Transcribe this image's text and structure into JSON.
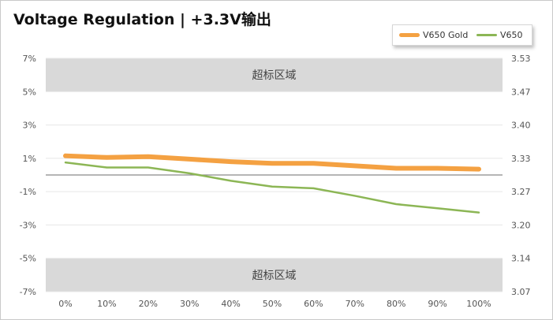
{
  "title": "Voltage Regulation | +3.3V输出",
  "colors": {
    "v650_gold": "#f4a142",
    "v650": "#8cb655",
    "zone": "#d9d9d9",
    "grid": "#e6e6e6",
    "zero_line": "#8a8a8a"
  },
  "chart_data": {
    "type": "line",
    "title": "Voltage Regulation | +3.3V输出",
    "categories": [
      "0%",
      "10%",
      "20%",
      "30%",
      "40%",
      "50%",
      "60%",
      "70%",
      "80%",
      "90%",
      "100%"
    ],
    "y_left_ticks": [
      "7%",
      "5%",
      "3%",
      "1%",
      "-1%",
      "-3%",
      "-5%",
      "-7%"
    ],
    "y_right_ticks": [
      "3.53",
      "3.47",
      "3.40",
      "3.33",
      "3.27",
      "3.20",
      "3.14",
      "3.07"
    ],
    "ylim_left": [
      -7,
      7
    ],
    "ylim_right": [
      3.07,
      3.53
    ],
    "out_of_spec_label": "超标区域",
    "out_of_spec_zones": [
      [
        5,
        7
      ],
      [
        -7,
        -5
      ]
    ],
    "legend_position": "top-right",
    "grid": true,
    "series": [
      {
        "name": "V650 Gold",
        "color": "#f4a142",
        "values": [
          1.15,
          1.05,
          1.1,
          0.95,
          0.8,
          0.7,
          0.7,
          0.55,
          0.4,
          0.4,
          0.35
        ]
      },
      {
        "name": "V650",
        "color": "#8cb655",
        "values": [
          0.75,
          0.45,
          0.45,
          0.1,
          -0.35,
          -0.7,
          -0.8,
          -1.25,
          -1.75,
          -2.0,
          -2.25
        ]
      }
    ]
  }
}
